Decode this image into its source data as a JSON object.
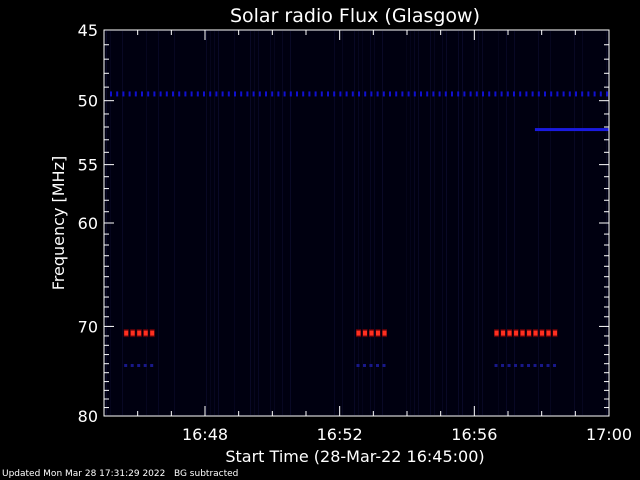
{
  "chart_data": {
    "type": "heatmap",
    "title": "Solar radio Flux (Glasgow)",
    "xlabel": "Start Time (28-Mar-22 16:45:00)",
    "ylabel": "Frequency [MHz]",
    "x_range_minutes": [
      0,
      15
    ],
    "x_ticks": [
      {
        "minute": 3,
        "label": "16:48"
      },
      {
        "minute": 7,
        "label": "16:52"
      },
      {
        "minute": 11,
        "label": "16:56"
      },
      {
        "minute": 15,
        "label": "17:00"
      }
    ],
    "ylim": [
      45,
      80
    ],
    "y_ticks": [
      45,
      50,
      55,
      60,
      70,
      80
    ],
    "y_scale": "log",
    "y_inverted": true,
    "grid": false,
    "features": [
      {
        "kind": "dotted-band",
        "freq_mhz": 49.5,
        "x_start_min": 0,
        "x_end_min": 15,
        "color": "#1010d0"
      },
      {
        "kind": "solid-band",
        "freq_mhz": 52.2,
        "x_start_min": 12.8,
        "x_end_min": 15,
        "color": "#1a1ae0"
      },
      {
        "kind": "hot-burst",
        "freq_mhz": 70.7,
        "x_start_min": 0.6,
        "x_end_min": 1.5,
        "color": "#ff3020"
      },
      {
        "kind": "hot-burst",
        "freq_mhz": 70.7,
        "x_start_min": 7.5,
        "x_end_min": 8.3,
        "color": "#ff3020"
      },
      {
        "kind": "hot-burst",
        "freq_mhz": 70.7,
        "x_start_min": 11.6,
        "x_end_min": 13.5,
        "color": "#ff3020"
      },
      {
        "kind": "faint-band",
        "freq_mhz": 74.2,
        "x_start_min": 0.6,
        "x_end_min": 1.5,
        "color": "#18188a"
      },
      {
        "kind": "faint-band",
        "freq_mhz": 74.2,
        "x_start_min": 7.5,
        "x_end_min": 8.3,
        "color": "#18188a"
      },
      {
        "kind": "faint-band",
        "freq_mhz": 74.2,
        "x_start_min": 11.6,
        "x_end_min": 13.5,
        "color": "#18188a"
      }
    ],
    "background_color": "#000010",
    "axis_color": "#ffffff"
  },
  "footer": {
    "updated": "Updated Mon Mar 28 17:31:29 2022",
    "note": "BG subtracted"
  }
}
